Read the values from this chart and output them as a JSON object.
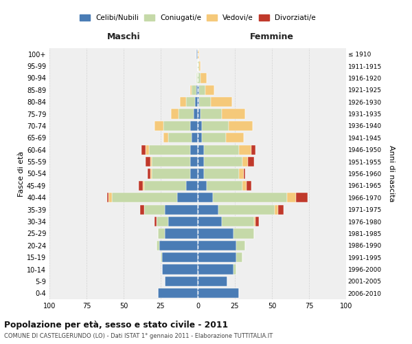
{
  "age_groups": [
    "0-4",
    "5-9",
    "10-14",
    "15-19",
    "20-24",
    "25-29",
    "30-34",
    "35-39",
    "40-44",
    "45-49",
    "50-54",
    "55-59",
    "60-64",
    "65-69",
    "70-74",
    "75-79",
    "80-84",
    "85-89",
    "90-94",
    "95-99",
    "100+"
  ],
  "birth_years": [
    "2006-2010",
    "2001-2005",
    "1996-2000",
    "1991-1995",
    "1986-1990",
    "1981-1985",
    "1976-1980",
    "1971-1975",
    "1966-1970",
    "1961-1965",
    "1956-1960",
    "1951-1955",
    "1946-1950",
    "1941-1945",
    "1936-1940",
    "1931-1935",
    "1926-1930",
    "1921-1925",
    "1916-1920",
    "1911-1915",
    "≤ 1910"
  ],
  "colors": {
    "celibi": "#4a7cb5",
    "coniugati": "#c5d9a8",
    "vedovi": "#f5c97a",
    "divorziati": "#c0392b"
  },
  "males": {
    "celibi": [
      27,
      22,
      24,
      24,
      26,
      22,
      20,
      22,
      14,
      8,
      5,
      5,
      5,
      4,
      5,
      3,
      2,
      1,
      0,
      0,
      1
    ],
    "coniugati": [
      0,
      0,
      0,
      1,
      2,
      5,
      8,
      14,
      44,
      28,
      26,
      26,
      28,
      16,
      18,
      10,
      6,
      3,
      1,
      0,
      0
    ],
    "vedovi": [
      0,
      0,
      0,
      0,
      0,
      0,
      0,
      0,
      2,
      1,
      1,
      1,
      2,
      3,
      6,
      5,
      4,
      1,
      0,
      0,
      0
    ],
    "divorziati": [
      0,
      0,
      0,
      0,
      0,
      0,
      1,
      3,
      1,
      3,
      2,
      3,
      3,
      0,
      0,
      0,
      0,
      0,
      0,
      0,
      0
    ]
  },
  "females": {
    "celibi": [
      28,
      20,
      24,
      26,
      26,
      24,
      16,
      14,
      10,
      6,
      4,
      4,
      4,
      3,
      3,
      2,
      1,
      1,
      0,
      0,
      0
    ],
    "coniugati": [
      0,
      0,
      2,
      4,
      6,
      14,
      22,
      38,
      50,
      24,
      24,
      26,
      24,
      16,
      18,
      14,
      8,
      4,
      2,
      1,
      0
    ],
    "vedovi": [
      0,
      0,
      0,
      0,
      0,
      0,
      1,
      2,
      6,
      3,
      3,
      4,
      8,
      12,
      16,
      16,
      14,
      6,
      4,
      1,
      1
    ],
    "divorziati": [
      0,
      0,
      0,
      0,
      0,
      0,
      2,
      4,
      8,
      3,
      1,
      4,
      3,
      0,
      0,
      0,
      0,
      0,
      0,
      0,
      0
    ]
  },
  "xlim": 100,
  "title": "Popolazione per età, sesso e stato civile - 2011",
  "subtitle": "COMUNE DI CASTELGERUNDO (LO) - Dati ISTAT 1° gennaio 2011 - Elaborazione TUTTITALIA.IT",
  "ylabel_left": "Fasce di età",
  "ylabel_right": "Anni di nascita",
  "header_left": "Maschi",
  "header_right": "Femmine",
  "legend_labels": [
    "Celibi/Nubili",
    "Coniugati/e",
    "Vedovi/e",
    "Divorziati/e"
  ],
  "bg_color": "#efefef",
  "grid_color": "#cccccc"
}
